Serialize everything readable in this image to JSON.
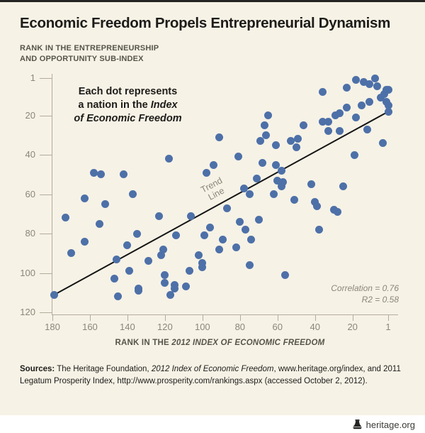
{
  "page": {
    "bg_color": "#f6f2e6",
    "footer_bg_color": "#ffffff",
    "accent_bar_color": "#242422"
  },
  "header": {
    "title": "Economic Freedom Propels Entrepreneurial Dynamism",
    "y_axis_label_line1": "RANK IN THE ENTREPRENEURSHIP",
    "y_axis_label_line2": "AND OPPORTUNITY SUB-INDEX"
  },
  "annotation": {
    "line1": "Each dot represents",
    "line2_normal": "a nation in the ",
    "line2_italic": "Index",
    "line3_italic": "of Economic Freedom"
  },
  "trend_label": {
    "line1": "Trend",
    "line2": "Line"
  },
  "stats": {
    "correlation": "Correlation = 0.76",
    "r2": "R2 = 0.58"
  },
  "x_axis": {
    "title_normal": "RANK IN THE ",
    "title_italic": "2012 INDEX OF ECONOMIC FREEDOM"
  },
  "sources": {
    "label": "Sources:",
    "text1": " The Heritage Foundation, ",
    "italic1": "2012 Index of Economic Freedom",
    "text2": ", www.heritage.org/index, and 2011 Legatum Prosperity Index, http://www.prosperity.com/rankings.aspx (accessed October 2, 2012)."
  },
  "footer": {
    "site": "heritage.org"
  },
  "chart_data": {
    "type": "scatter",
    "title": "Economic Freedom Propels Entrepreneurial Dynamism",
    "xlabel": "RANK IN THE 2012 INDEX OF ECONOMIC FREEDOM",
    "ylabel": "RANK IN THE ENTREPRENEURSHIP AND OPPORTUNITY SUB-INDEX",
    "x_ticks": [
      180,
      160,
      140,
      120,
      100,
      80,
      60,
      40,
      20,
      1
    ],
    "y_ticks": [
      1,
      20,
      40,
      60,
      80,
      100,
      120
    ],
    "x_range": [
      180,
      1
    ],
    "y_range": [
      1,
      120
    ],
    "x_axis_reversed": true,
    "y_axis_increases_downward": true,
    "grid": false,
    "dot_color": "#4d70a8",
    "trend_line_color": "#141414",
    "correlation": 0.76,
    "r_squared": 0.58,
    "trend_line": {
      "x1": 179,
      "y1": 111,
      "x2": 1,
      "y2": 18
    },
    "points": [
      [
        179,
        111
      ],
      [
        173,
        72
      ],
      [
        170,
        90
      ],
      [
        163,
        62
      ],
      [
        163,
        84
      ],
      [
        158,
        49
      ],
      [
        155,
        75
      ],
      [
        154,
        50
      ],
      [
        152,
        65
      ],
      [
        147,
        103
      ],
      [
        146,
        93
      ],
      [
        145,
        112
      ],
      [
        142,
        50
      ],
      [
        140,
        86
      ],
      [
        139,
        99
      ],
      [
        137,
        60
      ],
      [
        135,
        80
      ],
      [
        134,
        108
      ],
      [
        134,
        109
      ],
      [
        129,
        94
      ],
      [
        123,
        71
      ],
      [
        122,
        91
      ],
      [
        121,
        88
      ],
      [
        120,
        101
      ],
      [
        120,
        105
      ],
      [
        118,
        42
      ],
      [
        117,
        111
      ],
      [
        115,
        106
      ],
      [
        115,
        108
      ],
      [
        114,
        81
      ],
      [
        109,
        107
      ],
      [
        107,
        99
      ],
      [
        106,
        71
      ],
      [
        102,
        91
      ],
      [
        100,
        95
      ],
      [
        100,
        97
      ],
      [
        99,
        81
      ],
      [
        98,
        49
      ],
      [
        96,
        77
      ],
      [
        94,
        45
      ],
      [
        91,
        31
      ],
      [
        91,
        88
      ],
      [
        89,
        83
      ],
      [
        87,
        67
      ],
      [
        82,
        87
      ],
      [
        81,
        41
      ],
      [
        80,
        74
      ],
      [
        78,
        57
      ],
      [
        77,
        78
      ],
      [
        75,
        60
      ],
      [
        75,
        96
      ],
      [
        74,
        83
      ],
      [
        71,
        52
      ],
      [
        70,
        73
      ],
      [
        69,
        33
      ],
      [
        68,
        44
      ],
      [
        67,
        25
      ],
      [
        66,
        30
      ],
      [
        65,
        20
      ],
      [
        62,
        60
      ],
      [
        61,
        35
      ],
      [
        61,
        45
      ],
      [
        60,
        53
      ],
      [
        58,
        48
      ],
      [
        58,
        56
      ],
      [
        57,
        54
      ],
      [
        56,
        101
      ],
      [
        53,
        33
      ],
      [
        51,
        63
      ],
      [
        50,
        36
      ],
      [
        49,
        32
      ],
      [
        46,
        25
      ],
      [
        42,
        55
      ],
      [
        40,
        64
      ],
      [
        39,
        66
      ],
      [
        38,
        78
      ],
      [
        36,
        8
      ],
      [
        36,
        23
      ],
      [
        33,
        23
      ],
      [
        33,
        28
      ],
      [
        30,
        68
      ],
      [
        29,
        20
      ],
      [
        28,
        69
      ],
      [
        27,
        19
      ],
      [
        27,
        28
      ],
      [
        25,
        56
      ],
      [
        23,
        6
      ],
      [
        23,
        16
      ],
      [
        19,
        40
      ],
      [
        18,
        2
      ],
      [
        18,
        21
      ],
      [
        15,
        15
      ],
      [
        14,
        3
      ],
      [
        12,
        27
      ],
      [
        11,
        4
      ],
      [
        11,
        13
      ],
      [
        8,
        1
      ],
      [
        7,
        5
      ],
      [
        5,
        11
      ],
      [
        4,
        34
      ],
      [
        3,
        9
      ],
      [
        2,
        7
      ],
      [
        2,
        13
      ],
      [
        1,
        7
      ],
      [
        1,
        15
      ],
      [
        1,
        18
      ]
    ]
  }
}
